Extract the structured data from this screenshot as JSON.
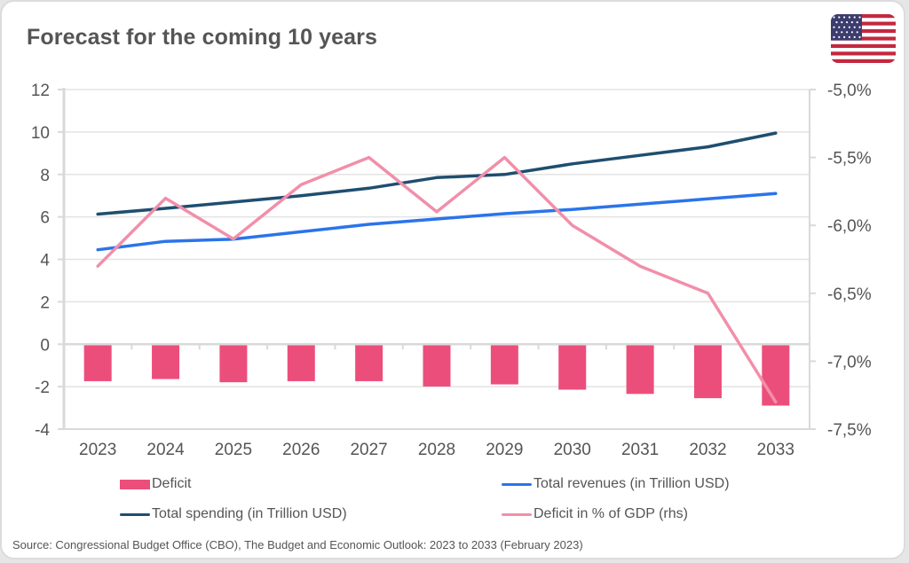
{
  "title": "Forecast for the coming 10 years",
  "flag_icon": "us-flag-icon",
  "source": "Source: Congressional Budget Office (CBO), The Budget and Economic Outlook: 2023 to 2033 (February 2023)",
  "colors": {
    "deficit_bar": "#ec4e7b",
    "revenues": "#2b74ea",
    "spending": "#1f4e6f",
    "deficit_pct": "#f18faa",
    "grid": "#e3e3e3",
    "axis": "#d9d9d9",
    "text": "#555555"
  },
  "legend": [
    {
      "name": "Deficit",
      "type": "bar",
      "color_key": "deficit_bar"
    },
    {
      "name": "Total revenues (in Trillion USD)",
      "type": "line",
      "color_key": "revenues"
    },
    {
      "name": "Total spending (in Trillion USD)",
      "type": "line",
      "color_key": "spending"
    },
    {
      "name": "Deficit in % of GDP (rhs)",
      "type": "line",
      "color_key": "deficit_pct"
    }
  ],
  "chart_data": {
    "type": "bar",
    "title": "Forecast for the coming 10 years",
    "categories": [
      "2023",
      "2024",
      "2025",
      "2026",
      "2027",
      "2028",
      "2029",
      "2030",
      "2031",
      "2032",
      "2033"
    ],
    "left_axis": {
      "min": -4,
      "max": 12,
      "step": 2,
      "ticks": [
        "12",
        "10",
        "8",
        "6",
        "4",
        "2",
        "0",
        "-2",
        "-4"
      ]
    },
    "right_axis": {
      "min": -7.5,
      "max": -5.0,
      "step": 0.5,
      "ticks": [
        "-5,0%",
        "-5,5%",
        "-6,0%",
        "-6,5%",
        "-7,0%",
        "-7,5%"
      ]
    },
    "grid": true,
    "legend_position": "bottom",
    "series": [
      {
        "name": "Deficit",
        "type": "bar",
        "axis": "left",
        "values": [
          -1.7,
          -1.6,
          -1.75,
          -1.7,
          -1.7,
          -1.95,
          -1.85,
          -2.1,
          -2.3,
          -2.5,
          -2.85
        ]
      },
      {
        "name": "Total revenues (in Trillion USD)",
        "type": "line",
        "axis": "left",
        "values": [
          4.45,
          4.85,
          4.95,
          5.3,
          5.65,
          5.9,
          6.15,
          6.35,
          6.6,
          6.85,
          7.1
        ]
      },
      {
        "name": "Total spending (in Trillion USD)",
        "type": "line",
        "axis": "left",
        "values": [
          6.13,
          6.4,
          6.7,
          7.0,
          7.35,
          7.85,
          8.0,
          8.5,
          8.9,
          9.3,
          9.95
        ]
      },
      {
        "name": "Deficit in % of GDP (rhs)",
        "type": "line",
        "axis": "right",
        "values": [
          -6.3,
          -5.8,
          -6.1,
          -5.7,
          -5.5,
          -5.9,
          -5.5,
          -6.0,
          -6.3,
          -6.5,
          -7.3
        ]
      }
    ]
  }
}
